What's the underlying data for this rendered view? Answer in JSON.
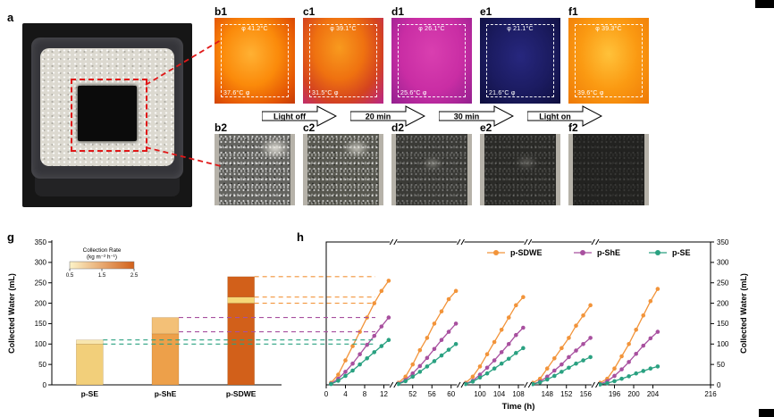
{
  "panel_labels": {
    "a": "a",
    "g": "g",
    "h": "h"
  },
  "thermal_row": {
    "marker": "φ",
    "panels": [
      {
        "label": "b1",
        "temp_top": "41.2°C",
        "temp_bottom": "37.6°C",
        "theme": "hot"
      },
      {
        "label": "c1",
        "temp_top": "39.1°C",
        "temp_bottom": "31.5°C",
        "theme": "warm"
      },
      {
        "label": "d1",
        "temp_top": "26.1°C",
        "temp_bottom": "25.6°C",
        "theme": "magenta"
      },
      {
        "label": "e1",
        "temp_top": "21.1°C",
        "temp_bottom": "21.6°C",
        "theme": "cold"
      },
      {
        "label": "f1",
        "temp_top": "39.3°C",
        "temp_bottom": "39.6°C",
        "theme": "hot2"
      }
    ]
  },
  "process_arrows": [
    {
      "label": "Light off"
    },
    {
      "label": "20 min"
    },
    {
      "label": "30 min"
    },
    {
      "label": "Light on"
    }
  ],
  "photo_row": {
    "panels": [
      {
        "label": "b2",
        "theme": "p0"
      },
      {
        "label": "c2",
        "theme": "p1"
      },
      {
        "label": "d2",
        "theme": "p2"
      },
      {
        "label": "e2",
        "theme": "p3"
      },
      {
        "label": "f2",
        "theme": "p4"
      }
    ]
  },
  "chart_data": [
    {
      "id": "g",
      "type": "bar",
      "stacked": true,
      "ylabel": "Collected Water (mL)",
      "ylim": [
        0,
        350
      ],
      "yticks": [
        0,
        50,
        100,
        150,
        200,
        250,
        300,
        350
      ],
      "categories": [
        "p-SE",
        "p-ShE",
        "p-SDWE"
      ],
      "series_segments": [
        {
          "category": "p-SE",
          "segments": [
            {
              "value": 100,
              "color": "#f2cf7a"
            },
            {
              "value": 10,
              "color": "#f8e6ae"
            }
          ]
        },
        {
          "category": "p-ShE",
          "segments": [
            {
              "value": 125,
              "color": "#eda04a"
            },
            {
              "value": 40,
              "color": "#f3c077"
            }
          ]
        },
        {
          "category": "p-SDWE",
          "segments": [
            {
              "value": 200,
              "color": "#d2601a"
            },
            {
              "value": 15,
              "color": "#f6d878"
            },
            {
              "value": 50,
              "color": "#d2601a"
            }
          ]
        }
      ],
      "colorbar": {
        "title": "Collection Rate",
        "units": "(kg m⁻² h⁻¹)",
        "tick_labels": [
          "0.5",
          "1.5",
          "2.5"
        ],
        "gradient_from": "#fdf3c8",
        "gradient_to": "#d2601a"
      },
      "guide_lines": [
        {
          "y": 265,
          "series": "p-SDWE"
        },
        {
          "y": 215,
          "series": "p-SDWE"
        },
        {
          "y": 200,
          "series": "p-SDWE"
        },
        {
          "y": 165,
          "series": "p-ShE"
        },
        {
          "y": 130,
          "series": "p-ShE"
        },
        {
          "y": 110,
          "series": "p-SE"
        },
        {
          "y": 100,
          "series": "p-SE"
        }
      ]
    },
    {
      "id": "h",
      "type": "line-scatter",
      "xlabel": "Time (h)",
      "ylabel": "Collected Water (mL)",
      "ylim": [
        0,
        350
      ],
      "yticks": [
        0,
        50,
        100,
        150,
        200,
        250,
        300,
        350
      ],
      "axis_breaks": true,
      "segments": [
        {
          "hours": [
            0,
            14
          ],
          "ticks": [
            0,
            4,
            8,
            12
          ]
        },
        {
          "hours": [
            48,
            62
          ],
          "ticks": [
            52,
            56,
            60
          ]
        },
        {
          "hours": [
            96,
            110
          ],
          "ticks": [
            100,
            104,
            108
          ]
        },
        {
          "hours": [
            144,
            158
          ],
          "ticks": [
            148,
            152,
            156
          ]
        },
        {
          "hours": [
            192,
            216
          ],
          "ticks": [
            196,
            200,
            204,
            216
          ]
        }
      ],
      "cycle_starts": [
        0,
        48,
        96,
        144,
        192
      ],
      "point_step": 1.5,
      "series": [
        {
          "name": "p-SDWE",
          "color": "#f2943a",
          "cycles": [
            [
              5,
              25,
              60,
              95,
              130,
              165,
              200,
              230,
              255
            ],
            [
              5,
              20,
              50,
              85,
              115,
              150,
              180,
              210,
              230
            ],
            [
              5,
              20,
              45,
              75,
              105,
              135,
              165,
              195,
              215
            ],
            [
              5,
              15,
              40,
              65,
              90,
              115,
              145,
              170,
              195
            ],
            [
              5,
              15,
              40,
              70,
              100,
              135,
              170,
              205,
              235
            ]
          ]
        },
        {
          "name": "p-ShE",
          "color": "#a8509f",
          "cycles": [
            [
              3,
              15,
              32,
              52,
              75,
              98,
              120,
              143,
              165
            ],
            [
              3,
              12,
              28,
              46,
              66,
              88,
              110,
              130,
              150
            ],
            [
              3,
              10,
              25,
              42,
              60,
              80,
              100,
              122,
              140
            ],
            [
              2,
              8,
              20,
              35,
              50,
              68,
              84,
              100,
              115
            ],
            [
              2,
              9,
              22,
              38,
              56,
              76,
              96,
              114,
              130
            ]
          ]
        },
        {
          "name": "p-SE",
          "color": "#2aa181",
          "cycles": [
            [
              2,
              10,
              22,
              35,
              50,
              65,
              80,
              95,
              110
            ],
            [
              2,
              9,
              20,
              32,
              45,
              58,
              72,
              86,
              100
            ],
            [
              2,
              8,
              18,
              28,
              40,
              52,
              64,
              78,
              90
            ],
            [
              2,
              6,
              13,
              22,
              32,
              42,
              52,
              60,
              68
            ],
            [
              1,
              4,
              9,
              15,
              21,
              28,
              34,
              40,
              45
            ]
          ]
        }
      ]
    }
  ]
}
